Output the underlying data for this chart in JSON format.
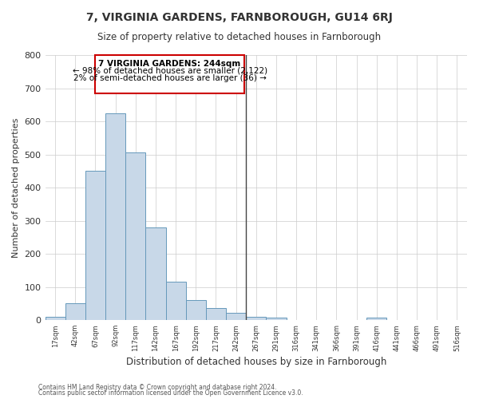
{
  "title": "7, VIRGINIA GARDENS, FARNBOROUGH, GU14 6RJ",
  "subtitle": "Size of property relative to detached houses in Farnborough",
  "xlabel": "Distribution of detached houses by size in Farnborough",
  "ylabel": "Number of detached properties",
  "bar_labels": [
    "17sqm",
    "42sqm",
    "67sqm",
    "92sqm",
    "117sqm",
    "142sqm",
    "167sqm",
    "192sqm",
    "217sqm",
    "242sqm",
    "267sqm",
    "291sqm",
    "316sqm",
    "341sqm",
    "366sqm",
    "391sqm",
    "416sqm",
    "441sqm",
    "466sqm",
    "491sqm",
    "516sqm"
  ],
  "bar_values": [
    10,
    52,
    450,
    623,
    505,
    280,
    117,
    60,
    37,
    22,
    10,
    7,
    0,
    0,
    0,
    0,
    8,
    0,
    0,
    0,
    0
  ],
  "bar_color": "#c8d8e8",
  "bar_edge_color": "#6699bb",
  "marker_label": "7 VIRGINIA GARDENS: 244sqm",
  "marker_smaller": "← 98% of detached houses are smaller (2,122)",
  "marker_larger": "2% of semi-detached houses are larger (36) →",
  "vline_color": "#444444",
  "box_edge_color": "#cc0000",
  "ylim": [
    0,
    800
  ],
  "yticks": [
    0,
    100,
    200,
    300,
    400,
    500,
    600,
    700,
    800
  ],
  "footnote1": "Contains HM Land Registry data © Crown copyright and database right 2024.",
  "footnote2": "Contains public sector information licensed under the Open Government Licence v3.0.",
  "bg_color": "#ffffff",
  "grid_color": "#cccccc"
}
